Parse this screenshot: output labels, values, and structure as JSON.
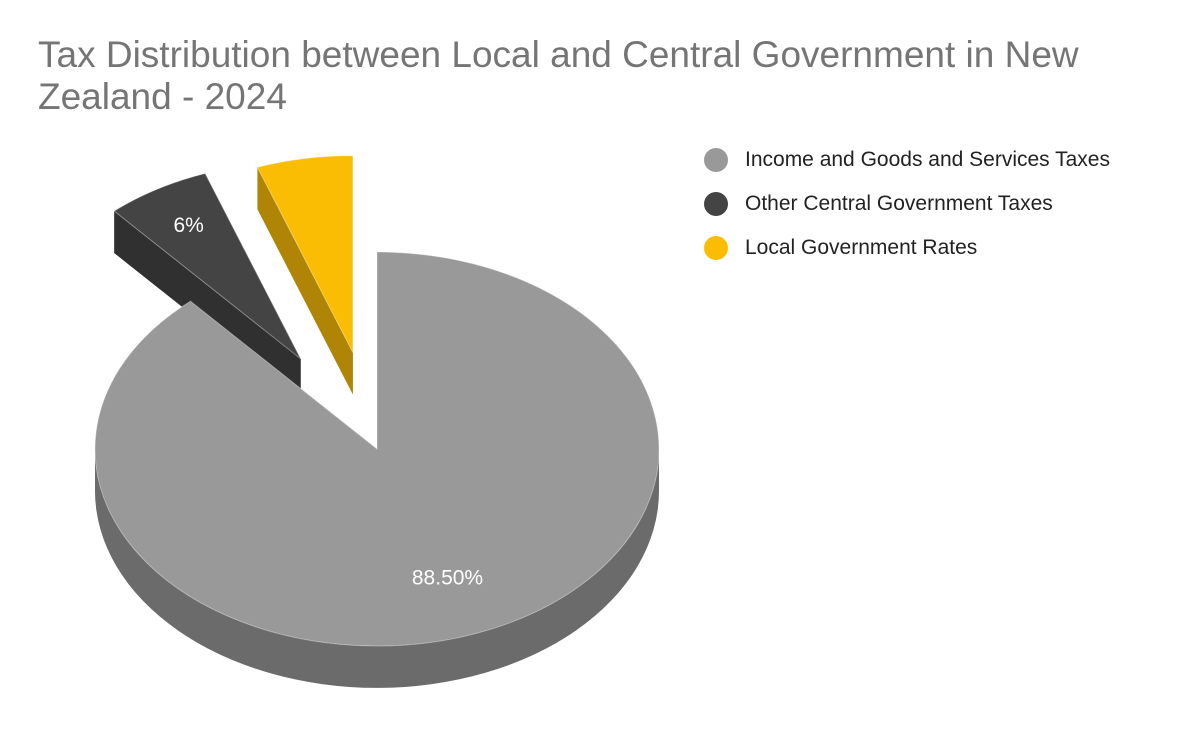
{
  "chart_data": {
    "type": "pie",
    "title": "Tax Distribution between Local and Central Government in New Zealand - 2024",
    "slices": [
      {
        "name": "Income and Goods and Services Taxes",
        "value": 88.5,
        "label": "88.50%",
        "color": "#999999",
        "side_color": "#6b6b6b"
      },
      {
        "name": "Other Central Government Taxes",
        "value": 6,
        "label": "6%",
        "color": "#444444",
        "side_color": "#303030"
      },
      {
        "name": "Local Government Rates",
        "value": 5.5,
        "label": "",
        "color": "#fbbc04",
        "side_color": "#b08404"
      }
    ],
    "style": "3d",
    "exploded": [
      "Other Central Government Taxes",
      "Local Government Rates"
    ],
    "legend_position": "right"
  }
}
